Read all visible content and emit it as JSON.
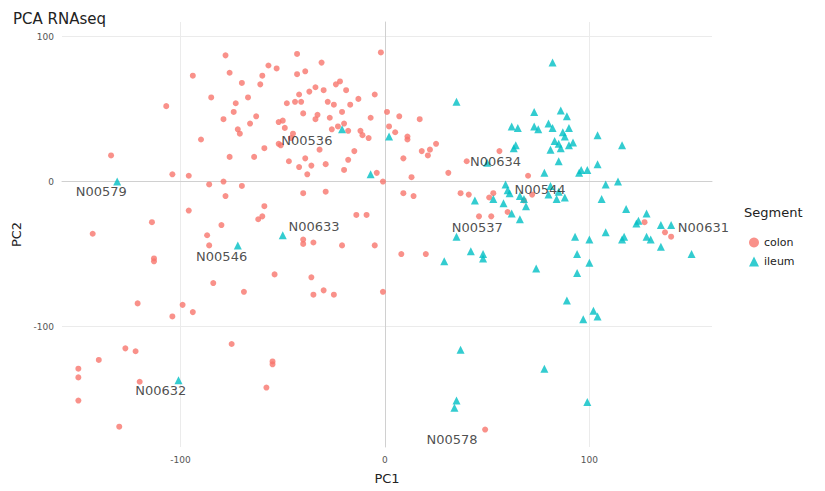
{
  "chart_data": {
    "type": "scatter",
    "title": "PCA RNAseq",
    "xlabel": "PC1",
    "ylabel": "PC2",
    "legend_title": "Segment",
    "xlim": [
      -158,
      160
    ],
    "ylim": [
      -183,
      110
    ],
    "xticks": [
      -100,
      0,
      100
    ],
    "yticks": [
      -100,
      0,
      100
    ],
    "grid": true,
    "legend": "right",
    "series": [
      {
        "name": "colon",
        "color": "#F8766D",
        "marker": "circle",
        "x": [
          -150,
          -150,
          -150,
          -140,
          -143,
          -134,
          -130,
          -127,
          -122,
          -121,
          -120,
          -114,
          -113,
          -113,
          -107,
          -104,
          -104,
          -99,
          -96,
          -96,
          -94,
          -94,
          -90,
          -87,
          -86,
          -86,
          -85,
          -84,
          -80,
          -79,
          -79,
          -78,
          -78,
          -76,
          -76,
          -75,
          -74,
          -73,
          -72,
          -71,
          -70,
          -70,
          -69,
          -67,
          -66,
          -64,
          -63,
          -62,
          -61,
          -60,
          -60,
          -59,
          -59,
          -58,
          -57,
          -55,
          -55,
          -54,
          -53,
          -52,
          -52,
          -51,
          -50,
          -49,
          -48,
          -47,
          -46,
          -45,
          -44,
          -43,
          -43,
          -42,
          -42,
          -41,
          -40,
          -40,
          -40,
          -40,
          -39,
          -39,
          -38,
          -37,
          -36,
          -36,
          -35,
          -35,
          -34,
          -34,
          -33,
          -32,
          -31,
          -30,
          -30,
          -29,
          -29,
          -28,
          -27,
          -26,
          -25,
          -25,
          -24,
          -23,
          -22,
          -21,
          -21,
          -20,
          -20,
          -19,
          -18,
          -18,
          -17,
          -15,
          -14,
          -13,
          -12,
          -11,
          -9,
          -8,
          -7,
          -5,
          -5,
          -4,
          -2,
          -1,
          -1,
          1,
          2,
          5,
          7,
          8,
          9,
          9,
          11,
          11,
          13,
          14,
          17,
          18,
          20,
          21,
          22,
          25,
          31,
          37,
          40,
          41,
          46,
          49,
          51,
          52,
          53,
          56,
          60,
          68,
          70,
          72,
          127,
          137,
          140
        ],
        "y": [
          -129,
          -135,
          -151,
          -123,
          -36,
          18,
          -169,
          -115,
          -117,
          -84,
          -138,
          -28,
          -53,
          -55,
          52,
          -93,
          5,
          -85,
          4,
          -20,
          -90,
          73,
          29,
          -37,
          -44,
          -2,
          58,
          -70,
          -30,
          0,
          43,
          87,
          -10,
          17,
          75,
          -112,
          48,
          54,
          36,
          33,
          -3,
          68,
          -76,
          58,
          40,
          17,
          45,
          -26,
          67,
          73,
          -24,
          -17,
          23,
          -142,
          80,
          -124,
          -126,
          -64,
          78,
          41,
          26,
          25,
          42,
          37,
          54,
          14,
          30,
          33,
          55,
          88,
          74,
          10,
          60,
          55,
          47,
          -8,
          -40,
          -43,
          16,
          76,
          5,
          62,
          -66,
          11,
          -78,
          -42,
          43,
          65,
          46,
          22,
          82,
          -75,
          63,
          12,
          -7,
          55,
          44,
          36,
          -78,
          53,
          67,
          38,
          69,
          48,
          -44,
          8,
          40,
          63,
          35,
          15,
          53,
          21,
          -23,
          57,
          35,
          32,
          -23,
          30,
          44,
          60,
          -44,
          6,
          89,
          0,
          -76,
          48,
          38,
          34,
          45,
          -50,
          16,
          -8,
          29,
          31,
          3,
          -10,
          43,
          21,
          -50,
          18,
          22,
          26,
          6,
          -8,
          14,
          -9,
          -24,
          -171,
          -11,
          -24,
          -8,
          21,
          -21,
          -13,
          4,
          -9,
          -28,
          -35,
          -38
        ]
      },
      {
        "name": "ileum",
        "color": "#00BFC4",
        "marker": "triangle",
        "x": [
          -131,
          -101,
          -72,
          -50,
          -21,
          -7,
          2,
          29,
          35,
          35,
          35,
          34,
          37,
          42,
          44,
          48,
          48,
          50,
          53,
          58,
          59,
          60,
          61,
          62,
          62,
          63,
          64,
          65,
          66,
          66,
          68,
          69,
          73,
          73,
          74,
          75,
          78,
          78,
          80,
          80,
          81,
          81,
          82,
          82,
          83,
          84,
          85,
          85,
          85,
          86,
          86,
          87,
          88,
          88,
          89,
          89,
          90,
          90,
          92,
          93,
          94,
          94,
          95,
          96,
          97,
          99,
          99,
          100,
          100,
          102,
          104,
          104,
          104,
          106,
          108,
          108,
          114,
          116,
          116,
          117,
          118,
          123,
          124,
          128,
          128,
          130,
          135,
          135,
          150,
          140
        ],
        "y": [
          0,
          -137,
          -44,
          -37,
          36,
          5,
          31,
          -55,
          55,
          -38,
          -151,
          -156,
          -116,
          -48,
          -13,
          -50,
          -53,
          13,
          -12,
          -15,
          -2,
          -6,
          -8,
          -22,
          38,
          23,
          25,
          37,
          -10,
          -26,
          -12,
          -17,
          48,
          38,
          -60,
          36,
          6,
          -129,
          40,
          -9,
          22,
          -3,
          37,
          82,
          28,
          -12,
          26,
          -7,
          14,
          49,
          23,
          34,
          31,
          -11,
          45,
          -82,
          37,
          25,
          27,
          -38,
          -63,
          -50,
          6,
          8,
          -95,
          8,
          -152,
          -56,
          -40,
          -89,
          32,
          -93,
          12,
          -12,
          -2,
          -35,
          0,
          25,
          -40,
          -38,
          -19,
          -29,
          -27,
          -22,
          -38,
          -40,
          -30,
          -45,
          -50,
          -30
        ]
      }
    ],
    "annotations": [
      {
        "text": "N00579",
        "x": -138.8,
        "y": -6.8
      },
      {
        "text": "N00536",
        "x": -38.2,
        "y": 28
      },
      {
        "text": "N00633",
        "x": -34.7,
        "y": -30.7
      },
      {
        "text": "N00546",
        "x": -79.9,
        "y": -51.9
      },
      {
        "text": "N00632",
        "x": -109.7,
        "y": -144
      },
      {
        "text": "N00634",
        "x": 54.1,
        "y": 13.7
      },
      {
        "text": "N00544",
        "x": 75.9,
        "y": -5.5
      },
      {
        "text": "N00537",
        "x": 45.2,
        "y": -31.4
      },
      {
        "text": "N00631",
        "x": 155.8,
        "y": -31.4
      },
      {
        "text": "N00578",
        "x": 32.8,
        "y": -177.5
      }
    ]
  }
}
